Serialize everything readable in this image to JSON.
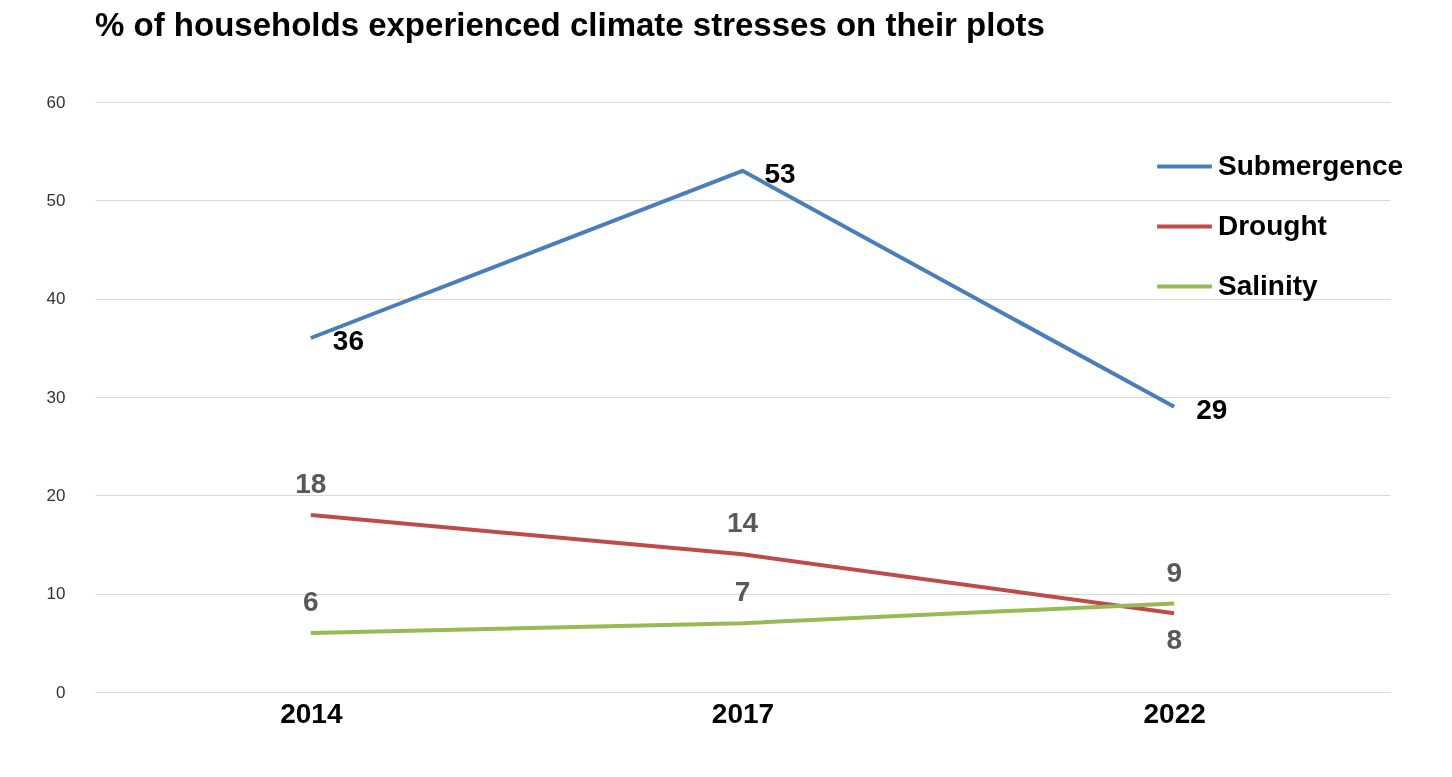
{
  "chart_data": {
    "type": "line",
    "title": "% of households experienced climate stresses on their plots",
    "categories": [
      "2014",
      "2017",
      "2022"
    ],
    "series": [
      {
        "name": "Submergence",
        "color": "#4a7ebb",
        "values": [
          36,
          53,
          29
        ]
      },
      {
        "name": "Drought",
        "color": "#be4b48",
        "values": [
          18,
          14,
          8
        ]
      },
      {
        "name": "Salinity",
        "color": "#98b954",
        "values": [
          6,
          7,
          9
        ]
      }
    ],
    "ylim": [
      0,
      60
    ],
    "yticks": [
      0,
      10,
      20,
      30,
      40,
      50,
      60
    ],
    "grid": "y",
    "legend": "top right",
    "data_labels": true,
    "marker": "none",
    "line_style": "solid"
  }
}
